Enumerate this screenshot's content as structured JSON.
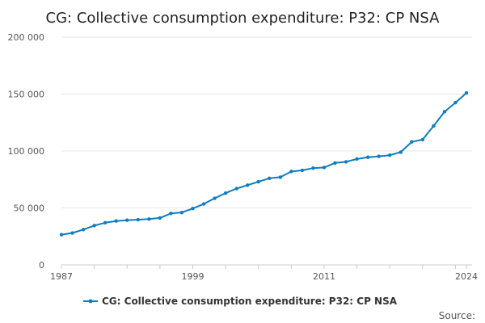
{
  "chart_data": {
    "type": "line",
    "title": "CG: Collective consumption expenditure: P32: CP NSA",
    "xlabel": "",
    "ylabel": "",
    "xlim": [
      1987,
      2024
    ],
    "ylim": [
      0,
      200000
    ],
    "x_ticks": [
      1987,
      1999,
      2011,
      2024
    ],
    "x_tick_labels": [
      "1987",
      "1999",
      "2011",
      "2024"
    ],
    "y_ticks": [
      0,
      50000,
      100000,
      150000,
      200000
    ],
    "y_tick_labels": [
      "0",
      "50 000",
      "100 000",
      "150 000",
      "200 000"
    ],
    "grid": true,
    "legend_position": "bottom-center",
    "series": [
      {
        "name": "CG: Collective consumption expenditure: P32: CP NSA",
        "color": "#0f7dc2",
        "x": [
          1987,
          1988,
          1989,
          1990,
          1991,
          1992,
          1993,
          1994,
          1995,
          1996,
          1997,
          1998,
          1999,
          2000,
          2001,
          2002,
          2003,
          2004,
          2005,
          2006,
          2007,
          2008,
          2009,
          2010,
          2011,
          2012,
          2013,
          2014,
          2015,
          2016,
          2017,
          2018,
          2019,
          2020,
          2021,
          2022,
          2023,
          2024
        ],
        "values": [
          26500,
          28000,
          31000,
          34500,
          37000,
          38500,
          39200,
          39700,
          40200,
          41200,
          45200,
          46000,
          49500,
          53500,
          58500,
          63000,
          67000,
          70000,
          73000,
          76000,
          77000,
          82000,
          83000,
          85000,
          85500,
          89500,
          90500,
          93000,
          94500,
          95300,
          96300,
          99000,
          108000,
          110000,
          122000,
          134500,
          142500,
          151000
        ]
      }
    ]
  },
  "legend": {
    "label": "CG: Collective consumption expenditure: P32: CP NSA"
  },
  "source_label": "Source:"
}
